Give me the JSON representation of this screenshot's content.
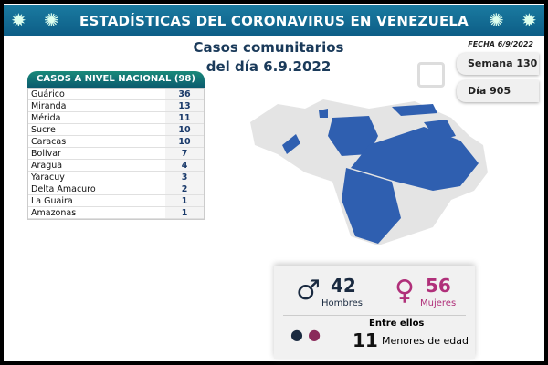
{
  "header": {
    "title": "ESTADÍSTICAS DEL CORONAVIRUS EN VENEZUELA",
    "subtitle_line1": "Casos comunitarios",
    "subtitle_line2": "del día 6.9.2022",
    "fecha": "FECHA 6/9/2022"
  },
  "calendar": {
    "week": "Semana 130",
    "day": "Día 905",
    "icon": "calendar-icon"
  },
  "table": {
    "header": "CASOS A NIVEL NACIONAL (98)",
    "rows": [
      {
        "state": "Guárico",
        "cases": "36"
      },
      {
        "state": "Miranda",
        "cases": "13"
      },
      {
        "state": "Mérida",
        "cases": "11"
      },
      {
        "state": "Sucre",
        "cases": "10"
      },
      {
        "state": "Caracas",
        "cases": "10"
      },
      {
        "state": "Bolívar",
        "cases": "7"
      },
      {
        "state": "Aragua",
        "cases": "4"
      },
      {
        "state": "Yaracuy",
        "cases": "3"
      },
      {
        "state": "Delta Amacuro",
        "cases": "2"
      },
      {
        "state": "La Guaira",
        "cases": "1"
      },
      {
        "state": "Amazonas",
        "cases": "1"
      }
    ]
  },
  "summary": {
    "men_count": "42",
    "men_label": "Hombres",
    "women_count": "56",
    "women_label": "Mujeres",
    "minors_intro": "Entre ellos",
    "minors_count": "11",
    "minors_label": "Menores de edad"
  },
  "colors": {
    "banner": "#0d5d86",
    "map_highlight": "#2f5fb0",
    "men": "#1a2a40",
    "women": "#b0307a"
  }
}
